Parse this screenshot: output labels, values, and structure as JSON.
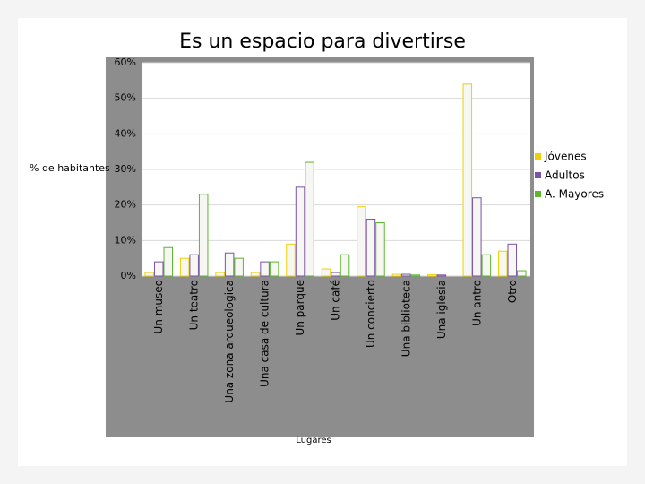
{
  "chart_data": {
    "type": "bar",
    "title": "Es un espacio para divertirse",
    "y_label": "% de habitantes",
    "x_label": "Lugares",
    "categories": [
      "Un museo",
      "Un teatro",
      "Una zona arqueologica",
      "Una casa de cultura",
      "Un parque",
      "Un café",
      "Un concierto",
      "Una biblioteca",
      "Una iglesia",
      "Un antro",
      "Otro"
    ],
    "series": [
      {
        "name": "Jóvenes",
        "color": "#f0d000",
        "values": [
          1,
          5,
          1,
          1,
          9,
          2,
          19.5,
          0.5,
          0.4,
          54,
          7
        ]
      },
      {
        "name": "Adultos",
        "color": "#7a52a8",
        "values": [
          4,
          6,
          6.5,
          4,
          25,
          1,
          16,
          0.5,
          0.3,
          22,
          9
        ]
      },
      {
        "name": "A. Mayores",
        "color": "#5cb82e",
        "values": [
          8,
          23,
          5,
          4,
          32,
          6,
          15,
          0.3,
          0,
          6,
          1.5
        ]
      }
    ],
    "ylim": [
      0,
      60
    ],
    "yticks": [
      {
        "value": 0,
        "label": "0%"
      },
      {
        "value": 10,
        "label": "10%"
      },
      {
        "value": 20,
        "label": "20%"
      },
      {
        "value": 30,
        "label": "30%"
      },
      {
        "value": 40,
        "label": "40%"
      },
      {
        "value": 50,
        "label": "50%"
      },
      {
        "value": 60,
        "label": "60%"
      }
    ],
    "legend": "right"
  }
}
